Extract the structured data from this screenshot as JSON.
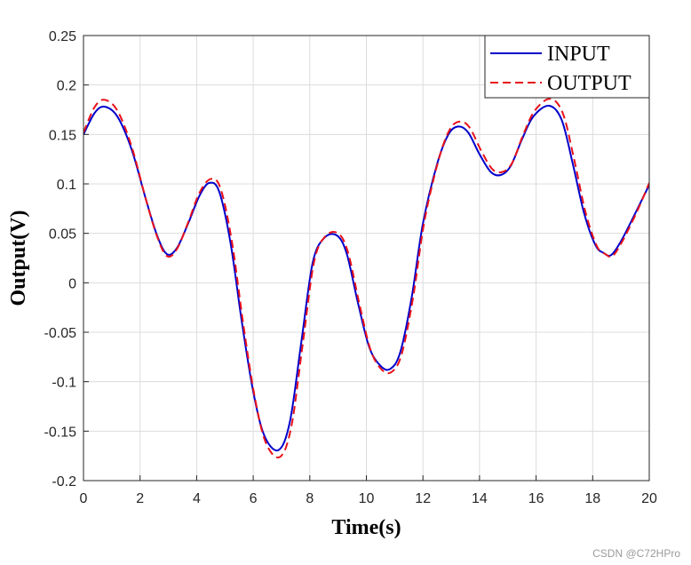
{
  "chart_data": {
    "type": "line",
    "title": "",
    "xlabel": "Time(s)",
    "ylabel": "Output(V)",
    "xlim": [
      0,
      20
    ],
    "ylim": [
      -0.2,
      0.25
    ],
    "xticks": [
      0,
      2,
      4,
      6,
      8,
      10,
      12,
      14,
      16,
      18,
      20
    ],
    "yticks": [
      -0.2,
      -0.15,
      -0.1,
      -0.05,
      0,
      0.05,
      0.1,
      0.15,
      0.2,
      0.25
    ],
    "xtick_labels": [
      "0",
      "2",
      "4",
      "6",
      "8",
      "10",
      "12",
      "14",
      "16",
      "18",
      "20"
    ],
    "ytick_labels": [
      "-0.2",
      "-0.15",
      "-0.1",
      "-0.05",
      "0",
      "0.05",
      "0.1",
      "0.15",
      "0.2",
      "0.25"
    ],
    "grid": true,
    "legend_position": "top-right",
    "series": [
      {
        "name": "INPUT",
        "color": "#0000cc",
        "style": "solid",
        "x": [
          0,
          0.4,
          0.75,
          1.2,
          1.7,
          2.2,
          2.6,
          2.95,
          3.3,
          3.7,
          4.1,
          4.45,
          4.8,
          5.2,
          5.6,
          6.0,
          6.4,
          6.9,
          7.3,
          7.7,
          8.1,
          8.5,
          8.95,
          9.3,
          9.7,
          10.1,
          10.5,
          10.85,
          11.2,
          11.6,
          12.0,
          12.5,
          12.9,
          13.25,
          13.6,
          14.0,
          14.4,
          14.75,
          15.1,
          15.5,
          15.9,
          16.45,
          16.9,
          17.3,
          17.7,
          18.1,
          18.4,
          18.65,
          19.0,
          19.5,
          20.0
        ],
        "values": [
          0.15,
          0.172,
          0.178,
          0.168,
          0.135,
          0.085,
          0.048,
          0.029,
          0.035,
          0.06,
          0.088,
          0.101,
          0.092,
          0.04,
          -0.04,
          -0.11,
          -0.155,
          -0.169,
          -0.14,
          -0.06,
          0.02,
          0.045,
          0.048,
          0.03,
          -0.02,
          -0.065,
          -0.084,
          -0.087,
          -0.07,
          -0.015,
          0.06,
          0.12,
          0.15,
          0.158,
          0.152,
          0.13,
          0.112,
          0.109,
          0.118,
          0.145,
          0.168,
          0.179,
          0.165,
          0.12,
          0.07,
          0.038,
          0.03,
          0.028,
          0.042,
          0.07,
          0.099
        ]
      },
      {
        "name": "OUTPUT",
        "color": "#e8111a",
        "style": "dashed",
        "x": [
          0,
          0.4,
          0.75,
          1.2,
          1.7,
          2.2,
          2.6,
          2.95,
          3.3,
          3.7,
          4.1,
          4.5,
          4.85,
          5.25,
          5.65,
          6.05,
          6.45,
          6.95,
          7.35,
          7.75,
          8.15,
          8.55,
          9.0,
          9.35,
          9.75,
          10.15,
          10.55,
          10.9,
          11.25,
          11.65,
          12.05,
          12.55,
          12.95,
          13.3,
          13.65,
          14.05,
          14.45,
          14.8,
          15.15,
          15.55,
          15.95,
          16.5,
          16.95,
          17.35,
          17.75,
          18.15,
          18.45,
          18.7,
          19.05,
          19.55,
          20.0
        ],
        "values": [
          0.152,
          0.178,
          0.185,
          0.174,
          0.138,
          0.085,
          0.047,
          0.027,
          0.034,
          0.061,
          0.091,
          0.105,
          0.095,
          0.041,
          -0.042,
          -0.115,
          -0.162,
          -0.176,
          -0.145,
          -0.062,
          0.021,
          0.047,
          0.05,
          0.031,
          -0.021,
          -0.068,
          -0.088,
          -0.09,
          -0.072,
          -0.015,
          0.062,
          0.124,
          0.155,
          0.163,
          0.157,
          0.134,
          0.115,
          0.112,
          0.121,
          0.15,
          0.174,
          0.186,
          0.171,
          0.124,
          0.071,
          0.037,
          0.029,
          0.027,
          0.042,
          0.071,
          0.101
        ]
      }
    ]
  },
  "watermark": "CSDN @C72HPro"
}
